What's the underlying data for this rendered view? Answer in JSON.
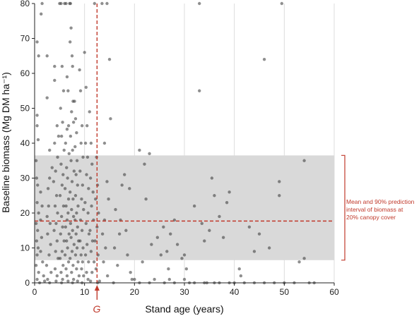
{
  "chart_data": {
    "type": "scatter",
    "xlabel": "Stand age (years)",
    "ylabel": "Baseline biomass (Mg DM ha⁻¹)",
    "xlim": [
      0,
      60
    ],
    "ylim": [
      0,
      80
    ],
    "x_ticks": [
      0,
      10,
      20,
      30,
      40,
      50,
      60
    ],
    "y_ticks": [
      0,
      10,
      20,
      30,
      40,
      50,
      60,
      70,
      80
    ],
    "grid": "vertical",
    "band": {
      "mean": 17.7,
      "lower": 6.5,
      "upper": 36.5
    },
    "vertical_reference_x": 12.5,
    "vertical_reference_label": "G",
    "annotation": [
      "Mean and 90% prediction",
      "interval of biomass at",
      "20% canopy cover"
    ],
    "colors": {
      "points": "#333333",
      "band": "#d9d9d9",
      "reference": "#c0392b",
      "grid": "#dddddd"
    },
    "series": [
      {
        "points": [
          [
            0.3,
            35
          ],
          [
            0.5,
            48
          ],
          [
            0.5,
            45
          ],
          [
            0.7,
            41
          ],
          [
            0.5,
            69
          ],
          [
            0.8,
            65
          ],
          [
            1.3,
            77
          ],
          [
            1.5,
            80
          ],
          [
            0.4,
            30
          ],
          [
            0.6,
            28
          ],
          [
            0.5,
            23
          ],
          [
            0.8,
            20
          ],
          [
            0.3,
            17
          ],
          [
            0.6,
            15
          ],
          [
            0.4,
            12
          ],
          [
            0.7,
            10
          ],
          [
            0.5,
            8
          ],
          [
            0.3,
            5
          ],
          [
            0.8,
            3
          ],
          [
            0.5,
            1
          ],
          [
            1,
            0
          ],
          [
            1.2,
            18
          ],
          [
            1.5,
            22
          ],
          [
            1.2,
            26
          ],
          [
            1.4,
            13
          ],
          [
            1.2,
            9
          ],
          [
            1.6,
            6
          ],
          [
            1.8,
            2
          ],
          [
            2,
            0.5
          ],
          [
            2.5,
            53
          ],
          [
            2.5,
            65
          ],
          [
            3,
            38
          ],
          [
            3.5,
            33
          ],
          [
            3,
            30
          ],
          [
            2.7,
            27
          ],
          [
            2.8,
            22
          ],
          [
            2.5,
            19
          ],
          [
            3.1,
            17
          ],
          [
            2.6,
            14
          ],
          [
            3.2,
            11
          ],
          [
            2.9,
            8
          ],
          [
            2.4,
            5
          ],
          [
            3.3,
            3
          ],
          [
            2.6,
            1
          ],
          [
            3,
            0
          ],
          [
            4,
            62
          ],
          [
            4,
            58
          ],
          [
            4.5,
            45
          ],
          [
            4.8,
            42
          ],
          [
            4,
            40
          ],
          [
            4.6,
            36
          ],
          [
            4.2,
            32
          ],
          [
            3.8,
            29
          ],
          [
            4.4,
            25
          ],
          [
            4.1,
            22
          ],
          [
            4.6,
            20
          ],
          [
            4.3,
            17
          ],
          [
            3.9,
            15
          ],
          [
            4.5,
            12
          ],
          [
            4.2,
            9
          ],
          [
            4.7,
            7
          ],
          [
            4.1,
            4
          ],
          [
            4.5,
            2
          ],
          [
            4.3,
            0.5
          ],
          [
            5,
            80
          ],
          [
            5.3,
            80
          ],
          [
            5.5,
            62
          ],
          [
            5.8,
            55
          ],
          [
            5.2,
            50
          ],
          [
            5.6,
            46
          ],
          [
            5.4,
            42
          ],
          [
            5.9,
            38
          ],
          [
            5.3,
            34
          ],
          [
            5.7,
            31
          ],
          [
            5.5,
            28
          ],
          [
            5.1,
            25
          ],
          [
            5.8,
            22
          ],
          [
            5.4,
            19
          ],
          [
            5.6,
            16
          ],
          [
            5.2,
            14
          ],
          [
            5.9,
            12
          ],
          [
            5.5,
            9
          ],
          [
            5.1,
            7
          ],
          [
            5.7,
            5
          ],
          [
            5.3,
            3
          ],
          [
            5.6,
            1
          ],
          [
            5.4,
            0
          ],
          [
            6,
            80
          ],
          [
            6.3,
            80
          ],
          [
            6.5,
            59
          ],
          [
            6.7,
            55
          ],
          [
            6.8,
            45
          ],
          [
            6.5,
            44
          ],
          [
            6.2,
            40
          ],
          [
            6.9,
            37
          ],
          [
            6.4,
            33
          ],
          [
            6.6,
            30
          ],
          [
            6.1,
            27
          ],
          [
            6.8,
            24
          ],
          [
            6.3,
            22
          ],
          [
            6.7,
            20
          ],
          [
            6.5,
            18
          ],
          [
            6.2,
            16
          ],
          [
            6.9,
            14
          ],
          [
            6.4,
            12
          ],
          [
            6.6,
            10
          ],
          [
            6.1,
            8
          ],
          [
            6.8,
            6
          ],
          [
            6.3,
            4
          ],
          [
            6.5,
            2
          ],
          [
            6.7,
            0.5
          ],
          [
            7,
            80
          ],
          [
            7.2,
            80
          ],
          [
            7.3,
            73
          ],
          [
            7.1,
            69
          ],
          [
            7.5,
            65
          ],
          [
            7.6,
            62
          ],
          [
            7.7,
            52
          ],
          [
            7.4,
            49
          ],
          [
            7.8,
            46
          ],
          [
            7.2,
            42
          ],
          [
            7.6,
            38
          ],
          [
            7.3,
            35
          ],
          [
            7.9,
            32
          ],
          [
            7.5,
            29
          ],
          [
            7.1,
            26
          ],
          [
            7.7,
            24
          ],
          [
            7.4,
            21
          ],
          [
            7.8,
            19
          ],
          [
            7.2,
            17
          ],
          [
            7.6,
            15
          ],
          [
            7.3,
            13
          ],
          [
            7.9,
            11
          ],
          [
            7.5,
            9
          ],
          [
            7.1,
            7
          ],
          [
            7.7,
            5
          ],
          [
            7.4,
            3
          ],
          [
            7.8,
            1
          ],
          [
            7.6,
            0
          ],
          [
            8,
            52
          ],
          [
            8.2,
            47
          ],
          [
            8.4,
            43
          ],
          [
            8.1,
            39
          ],
          [
            8.5,
            35
          ],
          [
            8.3,
            31
          ],
          [
            8.6,
            28
          ],
          [
            8.2,
            25
          ],
          [
            8.7,
            22
          ],
          [
            8.4,
            20
          ],
          [
            8.1,
            18
          ],
          [
            8.6,
            16
          ],
          [
            8.3,
            14
          ],
          [
            8.8,
            12
          ],
          [
            8.5,
            10
          ],
          [
            8.2,
            8
          ],
          [
            8.7,
            6
          ],
          [
            8.4,
            4
          ],
          [
            8.9,
            2
          ],
          [
            8.6,
            0.5
          ],
          [
            9,
            61
          ],
          [
            9.2,
            55
          ],
          [
            9.5,
            45
          ],
          [
            9.3,
            40
          ],
          [
            9.7,
            36
          ],
          [
            9.1,
            32
          ],
          [
            9.6,
            28
          ],
          [
            9.4,
            24
          ],
          [
            9.8,
            21
          ],
          [
            9.2,
            18
          ],
          [
            9.5,
            15
          ],
          [
            9.1,
            12
          ],
          [
            9.7,
            10
          ],
          [
            9.3,
            8
          ],
          [
            9.6,
            6
          ],
          [
            9.4,
            4
          ],
          [
            9.8,
            2
          ],
          [
            9.5,
            0
          ],
          [
            10,
            66
          ],
          [
            10.3,
            56
          ],
          [
            10.5,
            45
          ],
          [
            10.2,
            40
          ],
          [
            10.6,
            36
          ],
          [
            10.4,
            31
          ],
          [
            10.8,
            27
          ],
          [
            10.1,
            23
          ],
          [
            10.7,
            20
          ],
          [
            10.3,
            17
          ],
          [
            10.9,
            14
          ],
          [
            10.5,
            11
          ],
          [
            10.2,
            8
          ],
          [
            10.8,
            6
          ],
          [
            10.4,
            3
          ],
          [
            10.7,
            1
          ],
          [
            11,
            49
          ],
          [
            11.3,
            40
          ],
          [
            11.5,
            34
          ],
          [
            11.2,
            30
          ],
          [
            11.7,
            26
          ],
          [
            11.4,
            22
          ],
          [
            11.8,
            18
          ],
          [
            11.1,
            15
          ],
          [
            11.6,
            12
          ],
          [
            11.3,
            9
          ],
          [
            11.9,
            6
          ],
          [
            11.5,
            3
          ],
          [
            11.2,
            0.5
          ],
          [
            12,
            80
          ],
          [
            12.4,
            36
          ],
          [
            12.6,
            28
          ],
          [
            12.2,
            24
          ],
          [
            12.8,
            20
          ],
          [
            12.5,
            16
          ],
          [
            12.1,
            12
          ],
          [
            12.7,
            8
          ],
          [
            12.3,
            4
          ],
          [
            12.6,
            0
          ],
          [
            13.5,
            80
          ],
          [
            14.5,
            80
          ],
          [
            14,
            40
          ],
          [
            15,
            64
          ],
          [
            15.2,
            47
          ],
          [
            14.5,
            29
          ],
          [
            14.8,
            24
          ],
          [
            14,
            18
          ],
          [
            13.6,
            14
          ],
          [
            14.2,
            10
          ],
          [
            13.8,
            6
          ],
          [
            14.6,
            2
          ],
          [
            13,
            0.5
          ],
          [
            16,
            10
          ],
          [
            16.2,
            21
          ],
          [
            17,
            14
          ],
          [
            17.5,
            28
          ],
          [
            17.2,
            18
          ],
          [
            16.6,
            5
          ],
          [
            18,
            31
          ],
          [
            18.3,
            15
          ],
          [
            18.6,
            8
          ],
          [
            19,
            27
          ],
          [
            19.2,
            3
          ],
          [
            19.5,
            1
          ],
          [
            15.8,
            0
          ],
          [
            21,
            38
          ],
          [
            22,
            34
          ],
          [
            23,
            37
          ],
          [
            22.3,
            24
          ],
          [
            21.6,
            6
          ],
          [
            23.4,
            11
          ],
          [
            24.6,
            13
          ],
          [
            25.3,
            8
          ],
          [
            25.8,
            16
          ],
          [
            26.5,
            9
          ],
          [
            26.8,
            4
          ],
          [
            27.2,
            14
          ],
          [
            28,
            18
          ],
          [
            28.6,
            11
          ],
          [
            29.5,
            7
          ],
          [
            30,
            8
          ],
          [
            30.4,
            4
          ],
          [
            32,
            22
          ],
          [
            33,
            55
          ],
          [
            33,
            80
          ],
          [
            33.5,
            17
          ],
          [
            34,
            12
          ],
          [
            35,
            15
          ],
          [
            35.5,
            30
          ],
          [
            36,
            25
          ],
          [
            37,
            19
          ],
          [
            37.8,
            13
          ],
          [
            38.5,
            23
          ],
          [
            39,
            26
          ],
          [
            41,
            4
          ],
          [
            41.3,
            2
          ],
          [
            43,
            16
          ],
          [
            44,
            9
          ],
          [
            45,
            14
          ],
          [
            46,
            64
          ],
          [
            47,
            10
          ],
          [
            49,
            29
          ],
          [
            49,
            25
          ],
          [
            49.5,
            80
          ],
          [
            53,
            6
          ],
          [
            54,
            7
          ],
          [
            54,
            35
          ],
          [
            20,
            1
          ],
          [
            21,
            0
          ],
          [
            23,
            0
          ],
          [
            24,
            1
          ],
          [
            26,
            0
          ],
          [
            27,
            1
          ],
          [
            28,
            0
          ],
          [
            30,
            1
          ],
          [
            31,
            0
          ],
          [
            32,
            0
          ],
          [
            34,
            0
          ],
          [
            34.5,
            0
          ],
          [
            36,
            0
          ],
          [
            37,
            0
          ],
          [
            39,
            0
          ],
          [
            40,
            0
          ],
          [
            42,
            0
          ],
          [
            44,
            0
          ],
          [
            46,
            0
          ],
          [
            48,
            0
          ],
          [
            50,
            0
          ],
          [
            52,
            0
          ],
          [
            55,
            0
          ],
          [
            56,
            0
          ]
        ]
      }
    ]
  }
}
